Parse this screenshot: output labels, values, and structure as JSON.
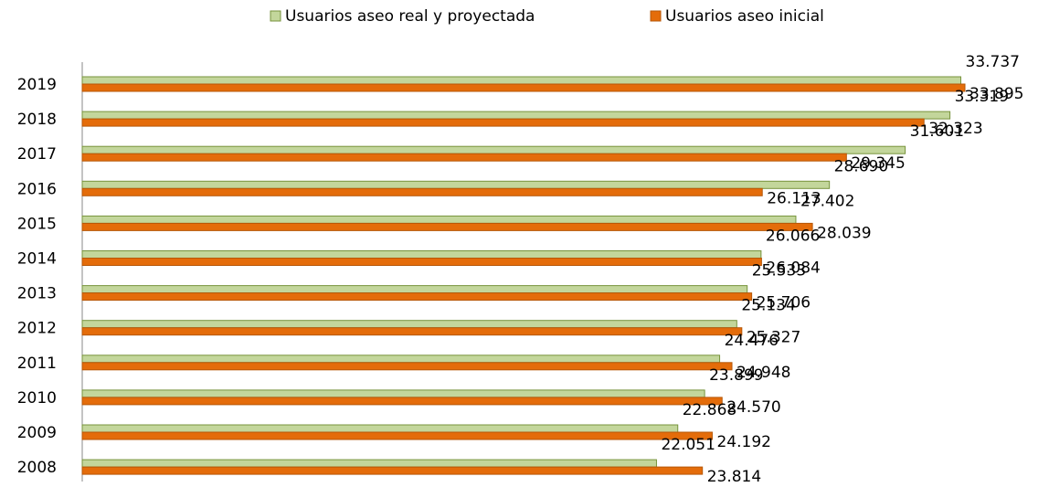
{
  "chart_data": {
    "type": "barh",
    "categories": [
      "2019",
      "2018",
      "2017",
      "2016",
      "2015",
      "2014",
      "2013",
      "2012",
      "2011",
      "2010",
      "2009",
      "2008"
    ],
    "series": [
      {
        "name": "Usuarios aseo real y proyectada",
        "color": "#c3d69b",
        "values": [
          33737,
          33319,
          31601,
          28690,
          27402,
          26066,
          25533,
          25134,
          24476,
          23899,
          22868,
          22051
        ],
        "value_labels": [
          "33.737",
          "33.319",
          "31.601",
          "28.690",
          "27.402",
          "26.066",
          "25.533",
          "25.134",
          "24.476",
          "23.899",
          "22.868",
          "22.051"
        ]
      },
      {
        "name": "Usuarios aseo inicial",
        "color": "#e46c0a",
        "values": [
          33895,
          32323,
          29345,
          26113,
          28039,
          26084,
          25706,
          25327,
          24948,
          24570,
          24192,
          23814
        ],
        "value_labels": [
          "33.895",
          "32.323",
          "29.345",
          "26.113",
          "28.039",
          "26.084",
          "25.706",
          "25.327",
          "24.948",
          "24.570",
          "24.192",
          "23.814"
        ]
      }
    ],
    "xlim": [
      0,
      36000
    ],
    "legend": "top"
  }
}
